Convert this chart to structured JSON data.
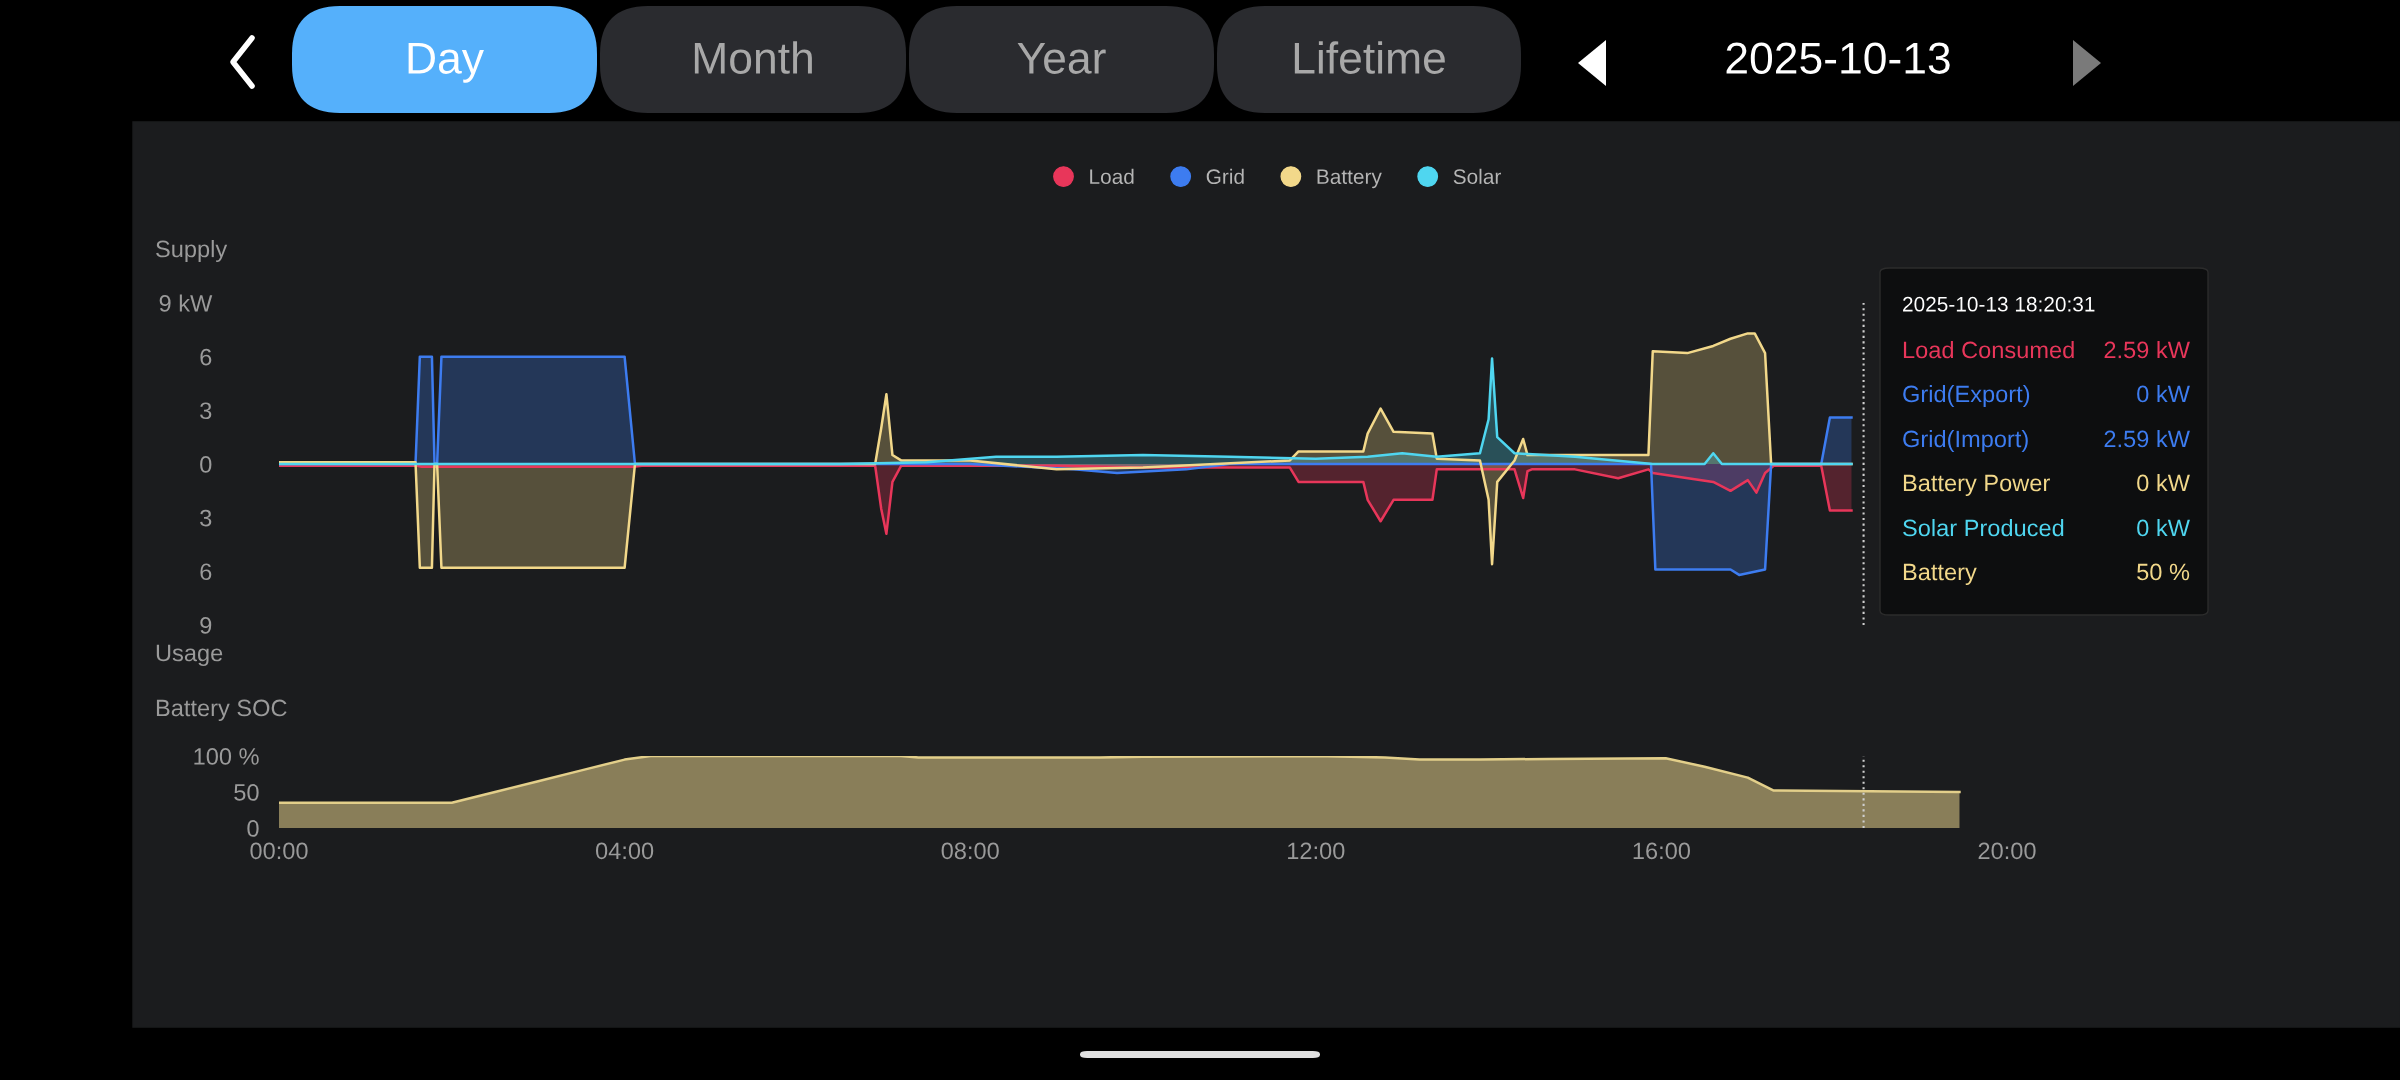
{
  "chart_data": [
    {
      "type": "area",
      "ylabel": "Supply",
      "legend": "top",
      "tick_labels": "y",
      "xlim": [
        0,
        20
      ],
      "ylim": [
        -9,
        9
      ],
      "yticks": [
        {
          "value": -9,
          "label": "9"
        },
        {
          "value": -6,
          "label": "6"
        },
        {
          "value": -3,
          "label": "3"
        },
        0,
        3,
        6,
        {
          "value": 9,
          "label": "9 kW"
        }
      ],
      "ref_lines": [
        {
          "axis": "x",
          "value": 18.34,
          "color": "#cfcfcf",
          "line_style": "dotted"
        }
      ],
      "series": [
        {
          "name": "Load",
          "color": "#e8365a",
          "x": [
            0,
            1.6,
            1.65,
            4.1,
            4.2,
            6.9,
            6.97,
            7.03,
            7.1,
            7.2,
            8,
            9,
            10,
            11.7,
            11.8,
            12.55,
            12.6,
            12.75,
            12.9,
            13.35,
            13.4,
            13.9,
            14.3,
            14.4,
            14.45,
            14.5,
            15,
            15.5,
            15.85,
            15.9,
            16.6,
            16.8,
            17.0,
            17.1,
            17.2,
            17.3,
            17.85,
            17.95,
            18.2
          ],
          "values": [
            -0.1,
            -0.1,
            -0.15,
            -0.15,
            -0.1,
            -0.1,
            -2.5,
            -3.9,
            -1.0,
            -0.1,
            -0.1,
            -0.1,
            -0.2,
            -0.2,
            -1.0,
            -1.0,
            -2.0,
            -3.2,
            -2.0,
            -2.0,
            -0.3,
            -0.3,
            -0.3,
            -1.9,
            -0.4,
            -0.3,
            -0.3,
            -0.8,
            -0.3,
            -0.5,
            -1.0,
            -1.5,
            -0.9,
            -1.6,
            -0.5,
            -0.1,
            -0.1,
            -2.6,
            -2.6
          ]
        },
        {
          "name": "Grid",
          "color": "#3d7cf0",
          "x": [
            0,
            1.58,
            1.63,
            1.77,
            1.8,
            1.83,
            1.88,
            4.0,
            4.12,
            4.2,
            8,
            9.2,
            9.7,
            10.5,
            11,
            12,
            13,
            14,
            15,
            15.88,
            15.93,
            16.8,
            16.9,
            17.2,
            17.27,
            17.85,
            17.95,
            18.2
          ],
          "values": [
            0,
            0,
            6.0,
            6.0,
            0,
            0,
            6.0,
            6.0,
            0,
            0,
            0,
            -0.3,
            -0.5,
            -0.3,
            0,
            0,
            0,
            0,
            0,
            0,
            -5.9,
            -5.9,
            -6.2,
            -5.9,
            0,
            0,
            2.6,
            2.6
          ]
        },
        {
          "name": "Battery",
          "color": "#f2d88a",
          "x": [
            0,
            1.58,
            1.63,
            1.77,
            1.8,
            1.83,
            1.88,
            4.0,
            4.12,
            6.9,
            6.97,
            7.03,
            7.1,
            7.2,
            8,
            9,
            10,
            11.7,
            11.8,
            12.55,
            12.6,
            12.75,
            12.9,
            13.35,
            13.4,
            13.9,
            14.0,
            14.04,
            14.1,
            14.3,
            14.4,
            14.45,
            14.5,
            15,
            15.85,
            15.9,
            16.3,
            16.6,
            16.8,
            17.0,
            17.08,
            17.2,
            17.27,
            18.2
          ],
          "values": [
            0.1,
            0.1,
            -5.8,
            -5.8,
            0,
            0,
            -5.8,
            -5.8,
            0,
            0,
            2.0,
            3.9,
            0.5,
            0.2,
            0.2,
            -0.3,
            -0.2,
            0.2,
            0.7,
            0.7,
            1.7,
            3.1,
            1.8,
            1.7,
            0.3,
            0.2,
            -2.0,
            -5.6,
            -1.0,
            0.2,
            1.4,
            0.5,
            0.5,
            0.5,
            0.5,
            6.3,
            6.2,
            6.6,
            7.0,
            7.3,
            7.3,
            6.2,
            0,
            0
          ]
        },
        {
          "name": "Solar",
          "color": "#4fd6f0",
          "x": [
            0,
            6.5,
            7.5,
            8.3,
            9,
            10,
            11,
            12,
            12.6,
            13,
            13.4,
            13.9,
            14.0,
            14.04,
            14.1,
            14.3,
            15,
            15.9,
            16.5,
            16.6,
            16.7,
            17.3,
            18.2
          ],
          "values": [
            0,
            0,
            0.1,
            0.4,
            0.4,
            0.5,
            0.4,
            0.3,
            0.4,
            0.6,
            0.4,
            0.6,
            2.5,
            5.9,
            1.5,
            0.6,
            0.4,
            0,
            0,
            0.6,
            0,
            0,
            0
          ]
        }
      ],
      "annotations": [
        "Usage",
        "Day",
        "Month",
        "Year",
        "Lifetime",
        "2025-10-13",
        "2025-10-13 18:20:31",
        "Load Consumed",
        "2.59 kW",
        "Grid(Export)",
        "0 kW",
        "Grid(Import)",
        "2.59 kW",
        "Battery Power",
        "0 kW",
        "Solar Produced",
        "0 kW",
        "Battery",
        "50 %"
      ]
    },
    {
      "type": "area",
      "ylabel": "Battery SOC",
      "xlim": [
        0,
        20
      ],
      "ylim": [
        0,
        100
      ],
      "xticks": [
        {
          "value": 0,
          "label": "00:00"
        },
        {
          "value": 4,
          "label": "04:00"
        },
        {
          "value": 8,
          "label": "08:00"
        },
        {
          "value": 12,
          "label": "12:00"
        },
        {
          "value": 16,
          "label": "16:00"
        },
        {
          "value": 20,
          "label": "20:00"
        }
      ],
      "yticks": [
        0,
        50,
        {
          "value": 100,
          "label": "100 %"
        }
      ],
      "ref_lines": [
        {
          "axis": "x",
          "value": 18.34,
          "color": "#cfcfcf",
          "line_style": "dotted"
        }
      ],
      "x": [
        0,
        2.0,
        2.5,
        3.0,
        3.5,
        4.0,
        4.3,
        7.2,
        7.4,
        9.5,
        10,
        12,
        12.8,
        13.2,
        13.9,
        14.7,
        16.05,
        16.5,
        17.0,
        17.3,
        19.45
      ],
      "series": [
        {
          "color": "#e3cf8a",
          "values": [
            35,
            35,
            50,
            65,
            80,
            95,
            100,
            100,
            98,
            98,
            99,
            100,
            98,
            95,
            95,
            96,
            97,
            85,
            70,
            52,
            50
          ]
        }
      ]
    }
  ]
}
